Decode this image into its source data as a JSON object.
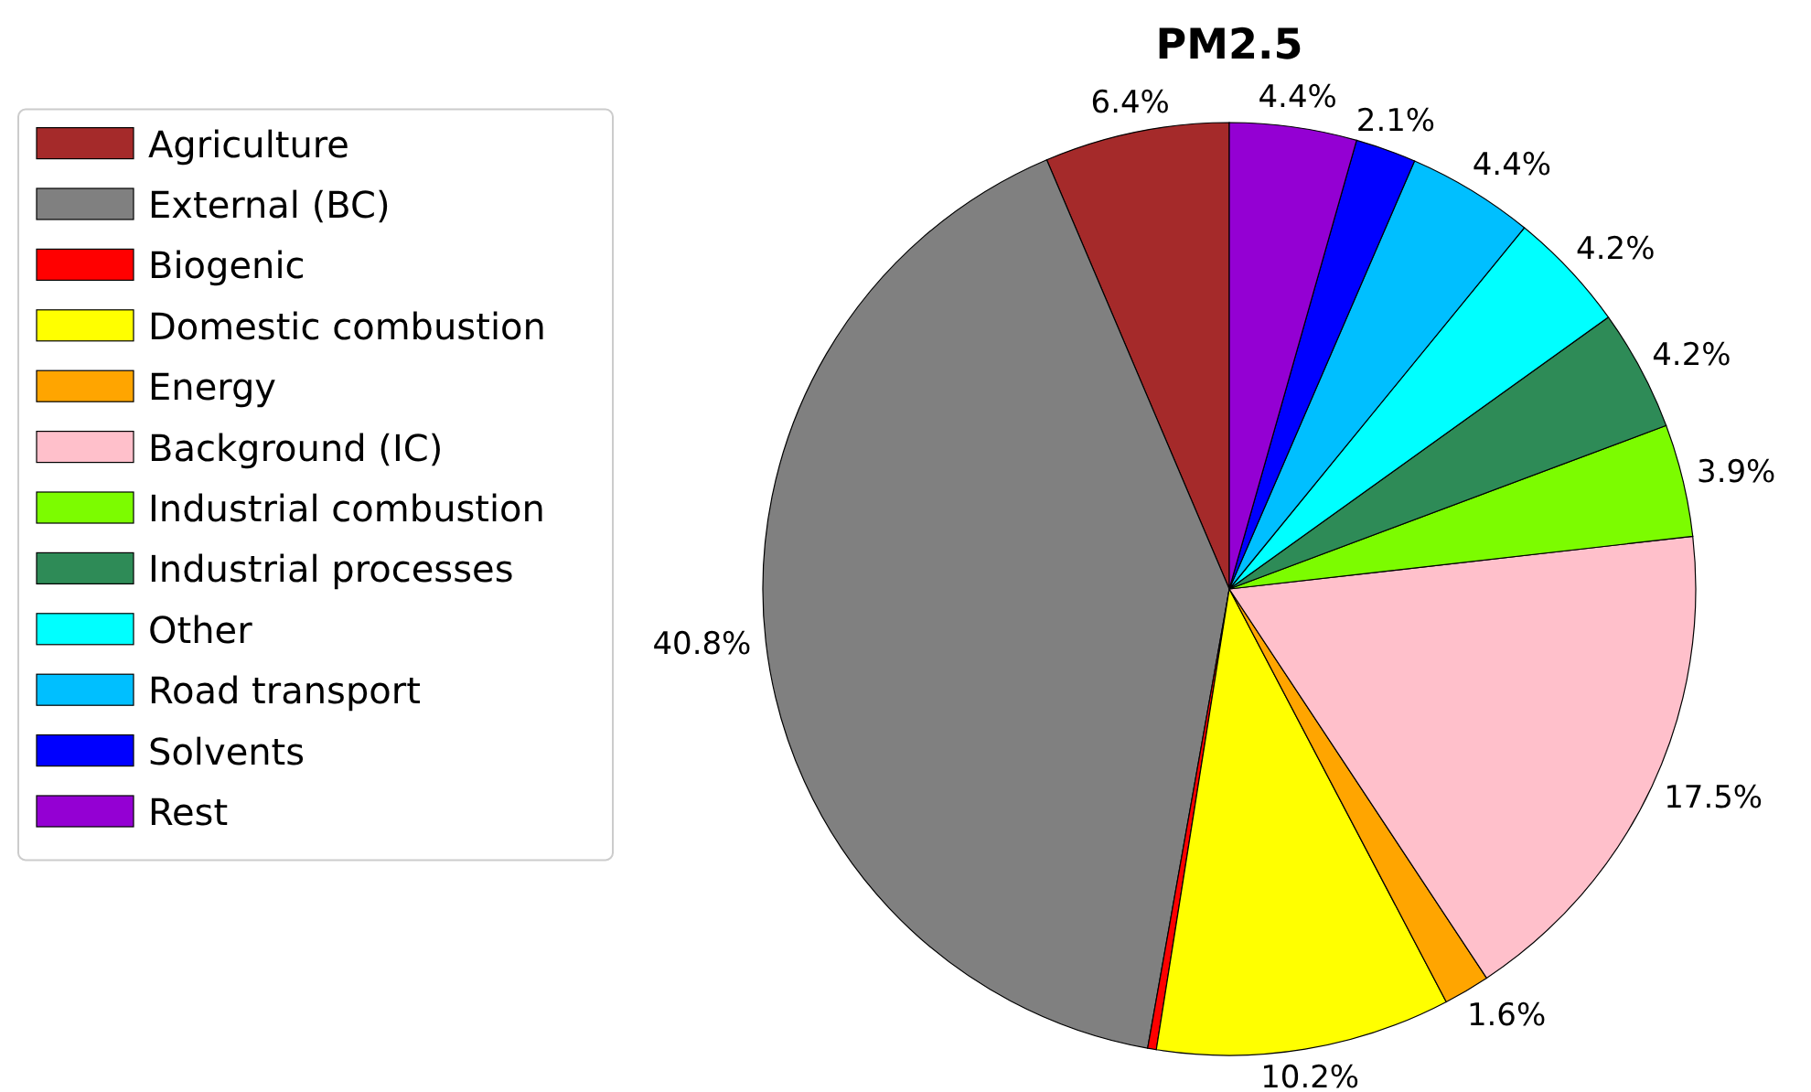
{
  "chart_data": {
    "type": "pie",
    "title": "PM2.5",
    "categories": [
      "Agriculture",
      "External (BC)",
      "Biogenic",
      "Domestic combustion",
      "Energy",
      "Background (IC)",
      "Industrial combustion",
      "Industrial processes",
      "Other",
      "Road transport",
      "Solvents",
      "Rest"
    ],
    "values": [
      6.4,
      40.8,
      0.3,
      10.2,
      1.6,
      17.5,
      3.9,
      4.2,
      4.2,
      4.4,
      2.1,
      4.4
    ],
    "value_labels": [
      "6.4%",
      "40.8%",
      null,
      "10.2%",
      "1.6%",
      "17.5%",
      "3.9%",
      "4.2%",
      "4.2%",
      "4.4%",
      "2.1%",
      "4.4%"
    ],
    "colors": [
      "#a52a2a",
      "#808080",
      "#ff0000",
      "#ffff00",
      "#ffa500",
      "#ffc0cb",
      "#7cfc00",
      "#2e8b57",
      "#00ffff",
      "#00bfff",
      "#0000ff",
      "#9400d3"
    ],
    "legend": "left"
  }
}
